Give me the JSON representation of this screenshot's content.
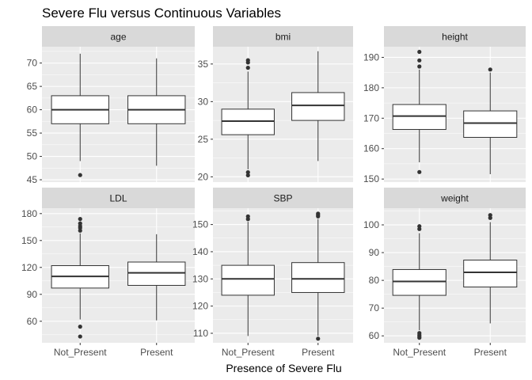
{
  "title": "Severe Flu versus Continuous Variables",
  "xlabel": "Presence of Severe Flu",
  "ylabel": "",
  "colors": {
    "panel_background": "#ebebeb",
    "strip_background": "#d9d9d9",
    "gridline": "#ffffff",
    "box_fill": "#ffffff",
    "box_line": "#333333",
    "tick_text": "#4d4d4d"
  },
  "chart_data": {
    "type": "boxplot",
    "layout": "facet-grid 2x3, free y scales",
    "grid": true,
    "legend": "none",
    "categories": [
      "Not_Present",
      "Present"
    ],
    "panels": [
      {
        "name": "age",
        "ylim": [
          44.5,
          73.5
        ],
        "yticks": [
          45,
          50,
          55,
          60,
          65,
          70
        ],
        "boxes": [
          {
            "group": "Not_Present",
            "min": 49,
            "q1": 57,
            "median": 60,
            "q3": 63,
            "max": 72,
            "outliers": [
              46
            ]
          },
          {
            "group": "Present",
            "min": 48,
            "q1": 57,
            "median": 60,
            "q3": 63,
            "max": 71,
            "outliers": []
          }
        ]
      },
      {
        "name": "bmi",
        "ylim": [
          19.3,
          37.3
        ],
        "yticks": [
          20,
          25,
          30,
          35
        ],
        "boxes": [
          {
            "group": "Not_Present",
            "min": 21,
            "q1": 25.6,
            "median": 27.4,
            "q3": 29,
            "max": 34,
            "outliers": [
              20.2,
              20.6,
              34.5,
              35.2,
              35.5
            ]
          },
          {
            "group": "Present",
            "min": 22.1,
            "q1": 27.5,
            "median": 29.5,
            "q3": 31.2,
            "max": 36.7,
            "outliers": []
          }
        ]
      },
      {
        "name": "height",
        "ylim": [
          149,
          193.5
        ],
        "yticks": [
          150,
          160,
          170,
          180,
          190
        ],
        "boxes": [
          {
            "group": "Not_Present",
            "min": 155.5,
            "q1": 166.3,
            "median": 170.7,
            "q3": 174.5,
            "max": 186,
            "outliers": [
              152.3,
              187,
              189,
              191.8
            ]
          },
          {
            "group": "Present",
            "min": 151.6,
            "q1": 163.7,
            "median": 168.4,
            "q3": 172.4,
            "max": 185,
            "outliers": [
              186
            ]
          }
        ]
      },
      {
        "name": "LDL",
        "ylim": [
          36,
          186
        ],
        "yticks": [
          60,
          90,
          120,
          150,
          180
        ],
        "boxes": [
          {
            "group": "Not_Present",
            "min": 62,
            "q1": 97,
            "median": 110,
            "q3": 122,
            "max": 158,
            "outliers": [
              43,
              54,
              161,
              164,
              166,
              169,
              174
            ]
          },
          {
            "group": "Present",
            "min": 61,
            "q1": 100,
            "median": 114,
            "q3": 126,
            "max": 157,
            "outliers": []
          }
        ]
      },
      {
        "name": "SBP",
        "ylim": [
          106.5,
          156
        ],
        "yticks": [
          110,
          120,
          130,
          140,
          150
        ],
        "boxes": [
          {
            "group": "Not_Present",
            "min": 109,
            "q1": 124,
            "median": 130,
            "q3": 135,
            "max": 151,
            "outliers": [
              152,
              153
            ]
          },
          {
            "group": "Present",
            "min": 109,
            "q1": 125,
            "median": 130,
            "q3": 136,
            "max": 152,
            "outliers": [
              108,
              153,
              153.5,
              154
            ]
          }
        ]
      },
      {
        "name": "weight",
        "ylim": [
          57.5,
          106
        ],
        "yticks": [
          60,
          70,
          80,
          90,
          100
        ],
        "boxes": [
          {
            "group": "Not_Present",
            "min": 62,
            "q1": 74.6,
            "median": 79.6,
            "q3": 83.9,
            "max": 97,
            "outliers": [
              59.3,
              59.8,
              60.3,
              61,
              98.5,
              99.5
            ]
          },
          {
            "group": "Present",
            "min": 64.5,
            "q1": 77.6,
            "median": 82.9,
            "q3": 87.3,
            "max": 101,
            "outliers": [
              102.5,
              103.5
            ]
          }
        ]
      }
    ]
  }
}
